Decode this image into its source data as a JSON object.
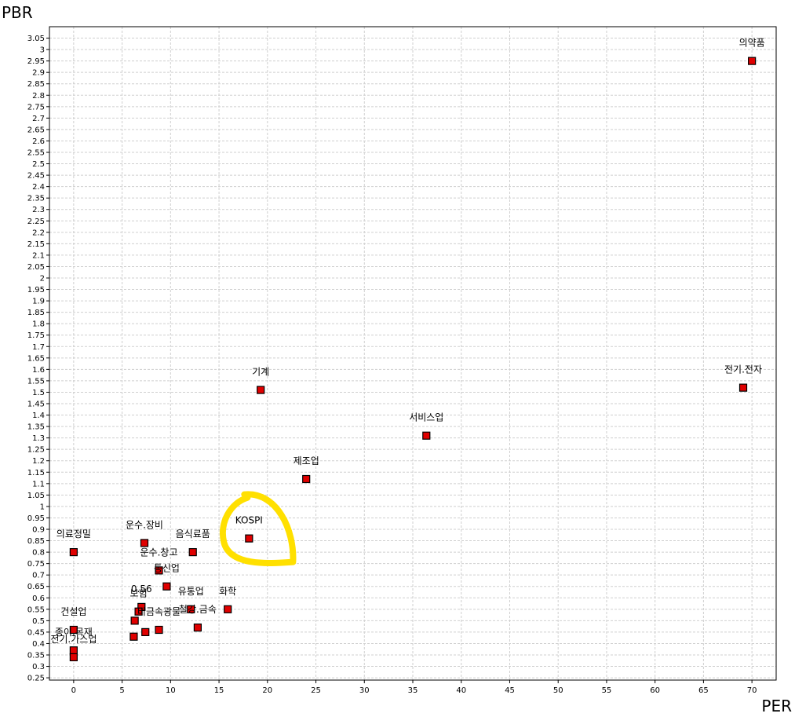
{
  "chart_data": {
    "type": "scatter",
    "xlabel": "PER",
    "ylabel": "PBR",
    "xlim": [
      -2.5,
      72.5
    ],
    "ylim": [
      0.24,
      3.1
    ],
    "x_ticks": [
      0,
      5,
      10,
      15,
      20,
      25,
      30,
      35,
      40,
      45,
      50,
      55,
      60,
      65,
      70
    ],
    "y_tick_step": 0.05,
    "y_tick_min": 0.25,
    "y_tick_max": 3.05,
    "grid": true,
    "marker_color": "#e00000",
    "highlight_color": "#ffe000",
    "points": [
      {
        "label": "의약품",
        "x": 70.0,
        "y": 2.95
      },
      {
        "label": "전기.전자",
        "x": 69.1,
        "y": 1.52
      },
      {
        "label": "기계",
        "x": 19.3,
        "y": 1.51
      },
      {
        "label": "서비스업",
        "x": 36.4,
        "y": 1.31
      },
      {
        "label": "제조업",
        "x": 24.0,
        "y": 1.12
      },
      {
        "label": "KOSPI",
        "x": 18.1,
        "y": 0.86
      },
      {
        "label": "의료정밀",
        "x": 0.0,
        "y": 0.8
      },
      {
        "label": "운수.장비",
        "x": 7.3,
        "y": 0.84
      },
      {
        "label": "음식료품",
        "x": 12.3,
        "y": 0.8
      },
      {
        "label": "운수.창고",
        "x": 8.8,
        "y": 0.72
      },
      {
        "label": "통신업",
        "x": 9.6,
        "y": 0.65
      },
      {
        "label": "0.56",
        "x": 7.0,
        "y": 0.56
      },
      {
        "label": "유통업",
        "x": 12.1,
        "y": 0.55
      },
      {
        "label": "화학",
        "x": 15.9,
        "y": 0.55
      },
      {
        "label": "보험",
        "x": 6.7,
        "y": 0.54
      },
      {
        "label": "철강.금속",
        "x": 12.8,
        "y": 0.47
      },
      {
        "label": "비금속광물",
        "x": 8.8,
        "y": 0.46
      },
      {
        "label": "",
        "x": 6.3,
        "y": 0.5
      },
      {
        "label": "",
        "x": 7.4,
        "y": 0.45
      },
      {
        "label": "",
        "x": 6.2,
        "y": 0.43
      },
      {
        "label": "건설업",
        "x": 0.0,
        "y": 0.46
      },
      {
        "label": "종이.목재",
        "x": 0.0,
        "y": 0.37
      },
      {
        "label": "전기.가스업",
        "x": 0.0,
        "y": 0.34
      }
    ]
  }
}
